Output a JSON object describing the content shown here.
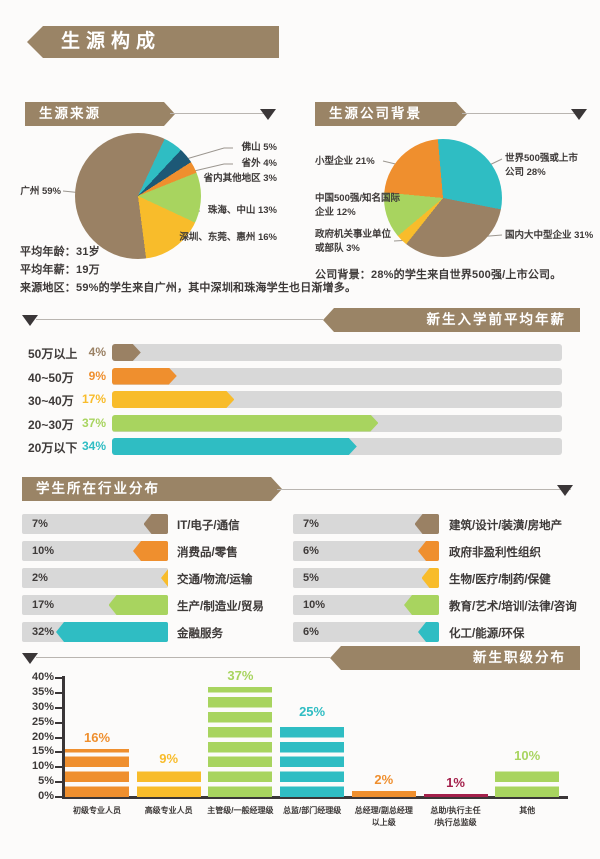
{
  "title": "生源构成",
  "colors": {
    "brown": "#9a8164",
    "orange": "#ef8f2e",
    "yellow": "#f8bc2b",
    "green": "#a8d45f",
    "teal": "#2fbdc3",
    "navy": "#1d5876",
    "crimson": "#a4204b",
    "track_gray": "#d8d8d8",
    "ink": "#3e3a39",
    "ribbon_brown": "#9a8466"
  },
  "source_notes": [
    "平均年龄：31岁",
    "平均年薪：19万",
    "来源地区：59%的学生来自广州，其中深圳和珠海学生也日渐增多。"
  ],
  "company_note": "公司背景：28%的学生来自世界500强/上市公司。",
  "chart_data": [
    {
      "id": "source_pie",
      "type": "pie",
      "title": "生源来源",
      "start_angle_deg": 25,
      "slices": [
        {
          "label": "佛山",
          "value": 5,
          "color": "teal",
          "display": "佛山 5%"
        },
        {
          "label": "省外",
          "value": 4,
          "color": "navy",
          "display": "省外 4%"
        },
        {
          "label": "省内其他地区",
          "value": 3,
          "color": "orange",
          "display": "省内其他地区 3%"
        },
        {
          "label": "珠海、中山",
          "value": 13,
          "color": "green",
          "display": "珠海、中山 13%"
        },
        {
          "label": "深圳、东莞、惠州",
          "value": 16,
          "color": "yellow",
          "display": "深圳、东莞、惠州 16%"
        },
        {
          "label": "广州",
          "value": 59,
          "color": "brown",
          "display": "广州 59%"
        }
      ]
    },
    {
      "id": "company_pie",
      "type": "pie",
      "title": "生源公司背景",
      "start_angle_deg": -5,
      "slices": [
        {
          "label": "世界500强或上市公司",
          "value": 28,
          "color": "teal",
          "display": "世界500强或上市\n公司 28%"
        },
        {
          "label": "国内大中型企业",
          "value": 31,
          "color": "brown",
          "display": "国内大中型企业 31%"
        },
        {
          "label": "政府机关事业单位或部队",
          "value": 3,
          "color": "yellow",
          "display": "政府机关事业单位\n或部队 3%"
        },
        {
          "label": "中国500强/知名国际企业",
          "value": 12,
          "color": "green",
          "display": "中国500强/知名国际\n企业 12%"
        },
        {
          "label": "小型企业",
          "value": 21,
          "color": "orange",
          "display": "小型企业 21%"
        }
      ]
    },
    {
      "id": "salary_bars",
      "type": "bar",
      "title": "新生入学前平均年薪",
      "orientation": "horizontal",
      "unit": "%",
      "categories": [
        "50万以上",
        "40~50万",
        "30~40万",
        "20~30万",
        "20万以下"
      ],
      "values": [
        4,
        9,
        17,
        37,
        34
      ],
      "bar_colors": [
        "brown",
        "orange",
        "yellow",
        "green",
        "teal"
      ]
    },
    {
      "id": "industry_bars",
      "type": "bar",
      "title": "学生所在行业分布",
      "orientation": "horizontal",
      "unit": "%",
      "columns": [
        {
          "categories": [
            "IT/电子/通信",
            "消费品/零售",
            "交通/物流/运输",
            "生产/制造业/贸易",
            "金融服务"
          ],
          "values": [
            7,
            10,
            2,
            17,
            32
          ],
          "bar_colors": [
            "brown",
            "orange",
            "yellow",
            "green",
            "teal"
          ]
        },
        {
          "categories": [
            "建筑/设计/装潢/房地产",
            "政府非盈利性组织",
            "生物/医疗/制药/保健",
            "教育/艺术/培训/法律/咨询",
            "化工/能源/环保"
          ],
          "values": [
            7,
            6,
            5,
            10,
            6
          ],
          "bar_colors": [
            "brown",
            "orange",
            "yellow",
            "green",
            "teal"
          ]
        }
      ]
    },
    {
      "id": "position_bars",
      "type": "bar",
      "title": "新生职级分布",
      "orientation": "vertical",
      "unit": "%",
      "ylim": [
        0,
        40
      ],
      "yticks": [
        "0%",
        "5%",
        "10%",
        "15%",
        "20%",
        "25%",
        "30%",
        "35%",
        "40%"
      ],
      "categories": [
        "初级专业人员",
        "高级专业人员",
        "主管级/一般经理级",
        "总监/部门经理级",
        "总经理/副总经理\n以上级",
        "总助/执行主任\n/执行总监级",
        "其他"
      ],
      "values": [
        16,
        9,
        37,
        25,
        2,
        1,
        10
      ],
      "bar_colors": [
        "orange",
        "yellow",
        "green",
        "teal",
        "orange",
        "crimson",
        "green"
      ]
    }
  ]
}
